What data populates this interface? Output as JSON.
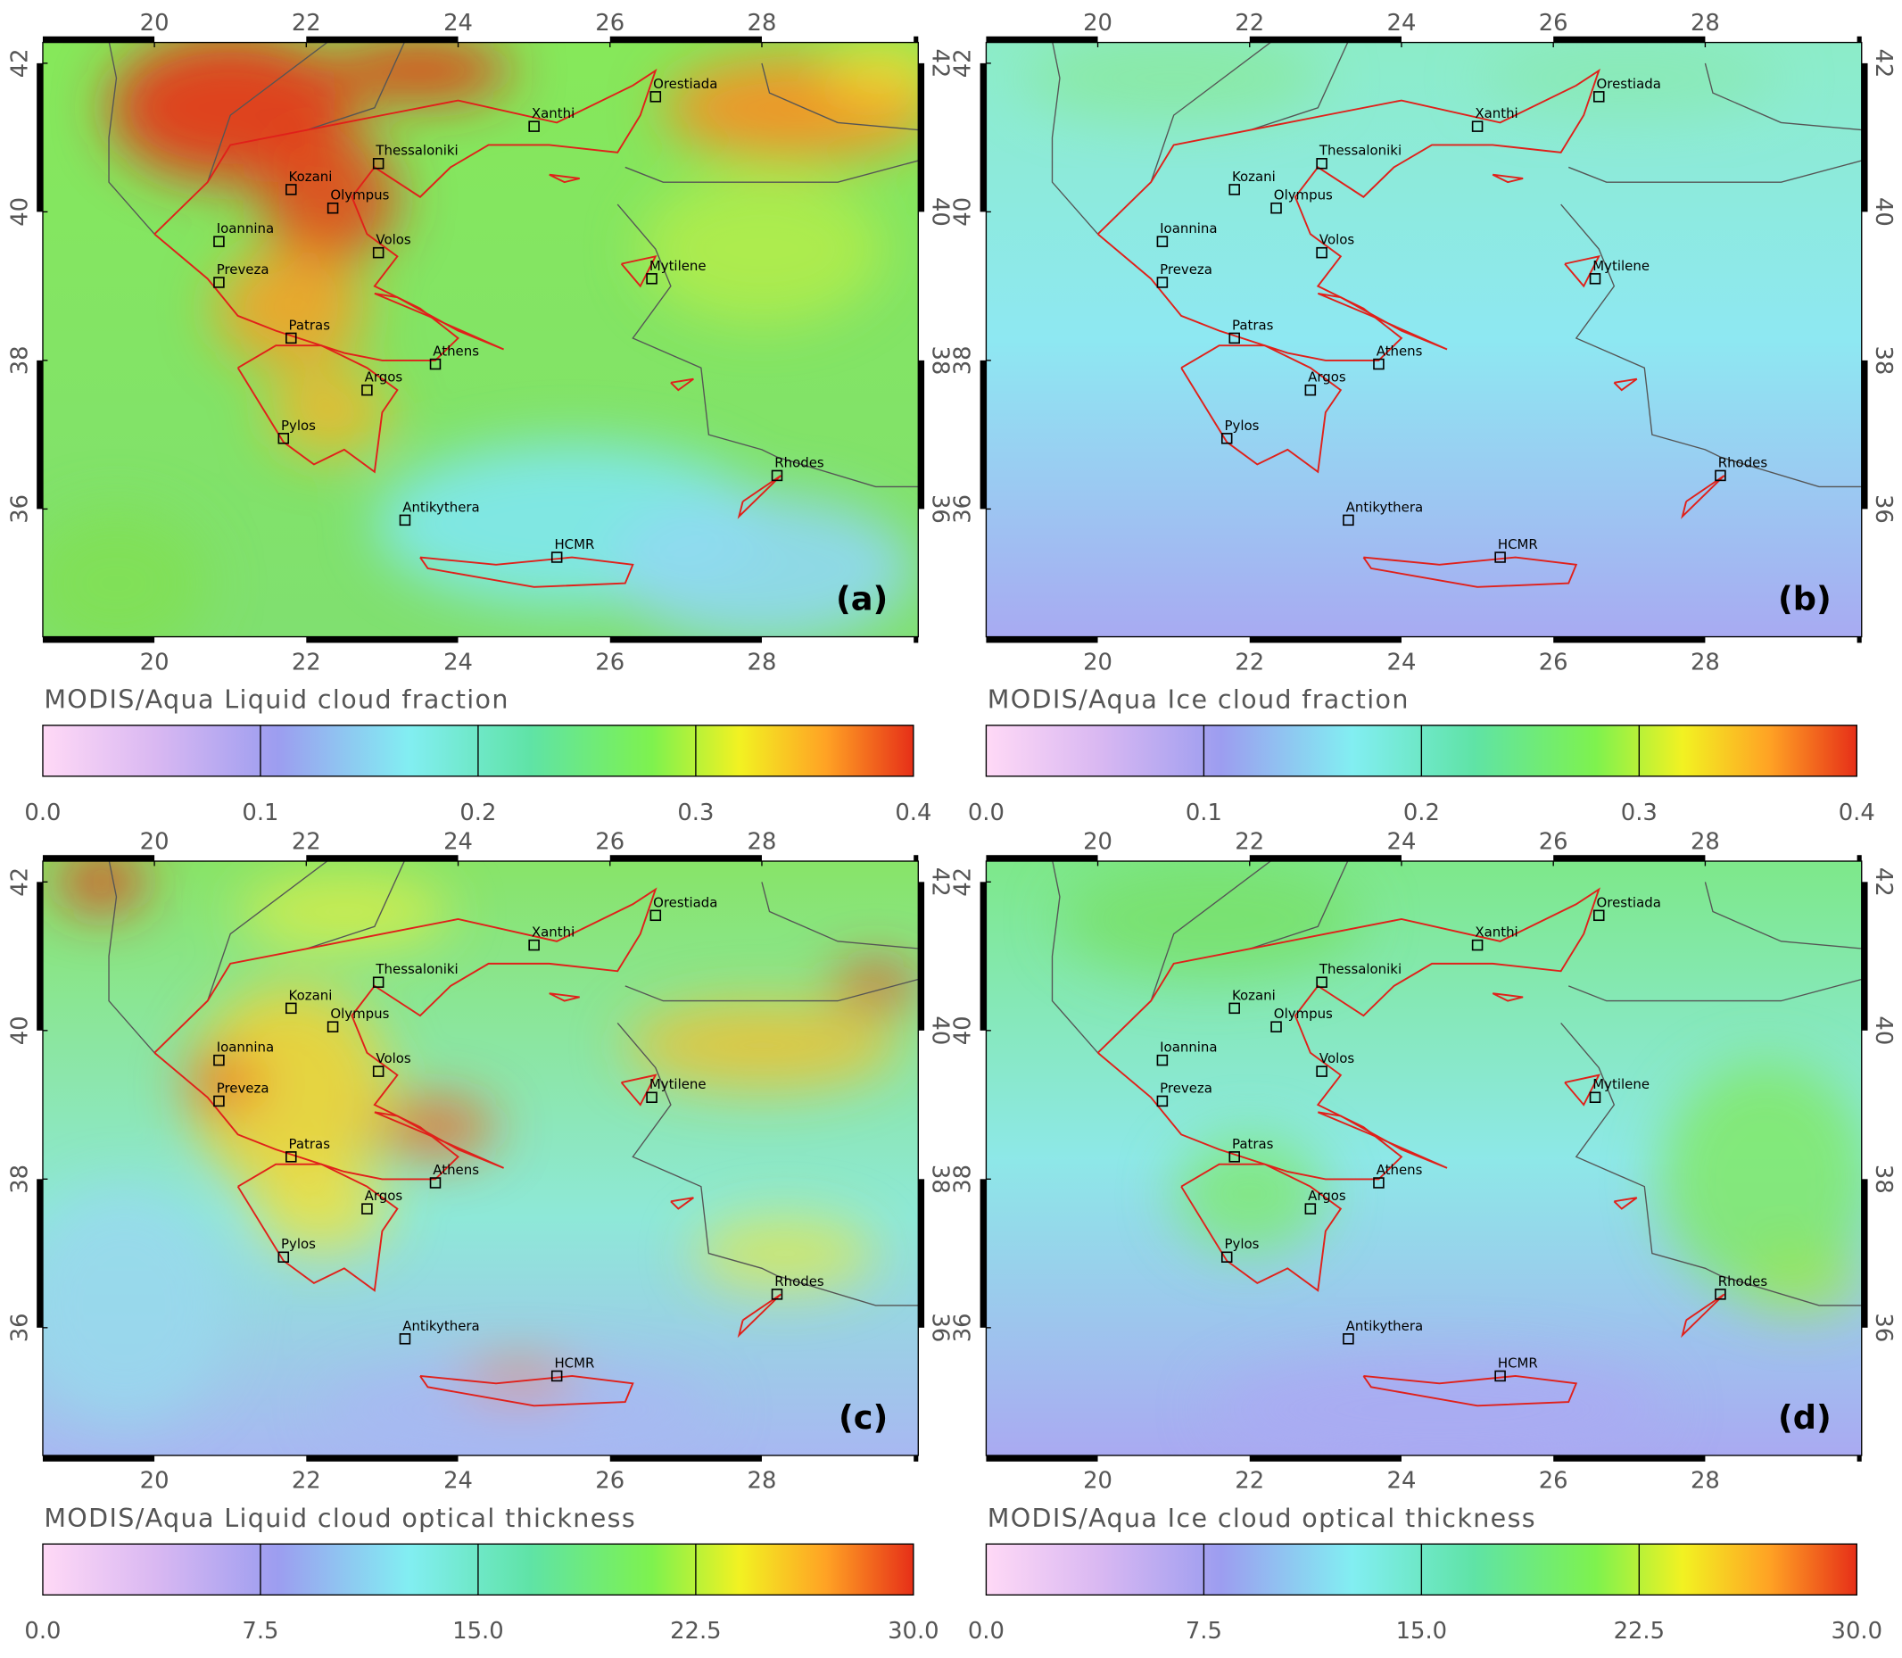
{
  "panels": [
    {
      "letter": "(a)",
      "title": "MODIS/Aqua Liquid cloud fraction",
      "colorbar_ticks": [
        {
          "value": 0,
          "label": "0.0"
        },
        0.1,
        0.2,
        0.3,
        0.4
      ]
    },
    {
      "letter": "(b)",
      "title": "MODIS/Aqua Ice cloud fraction",
      "colorbar_ticks": [
        {
          "value": 0,
          "label": "0.0"
        },
        0.1,
        0.2,
        0.3,
        0.4
      ]
    },
    {
      "letter": "(c)",
      "title": "MODIS/Aqua Liquid cloud optical thickness",
      "colorbar_ticks": [
        {
          "value": 0,
          "label": "0.0"
        },
        7.5,
        {
          "value": 15,
          "label": "15.0"
        },
        22.5,
        {
          "value": 30,
          "label": "30.0"
        }
      ]
    },
    {
      "letter": "(d)",
      "title": "MODIS/Aqua Ice cloud optical thickness",
      "colorbar_ticks": [
        {
          "value": 0,
          "label": "0.0"
        },
        7.5,
        {
          "value": 15,
          "label": "15.0"
        },
        22.5,
        {
          "value": 30,
          "label": "30.0"
        }
      ]
    }
  ],
  "lon_ticks": [
    20,
    22,
    24,
    26,
    28
  ],
  "lat_ticks": [
    36,
    38,
    40,
    42
  ],
  "cities": [
    "Orestiada",
    "Xanthi",
    "Thessaloniki",
    "Kozani",
    "Olympus",
    "Ioannina",
    "Volos",
    "Preveza",
    "Mytilene",
    "Patras",
    "Athens",
    "Argos",
    "Pylos",
    "Rhodes",
    "Antikythera",
    "HCMR"
  ]
}
